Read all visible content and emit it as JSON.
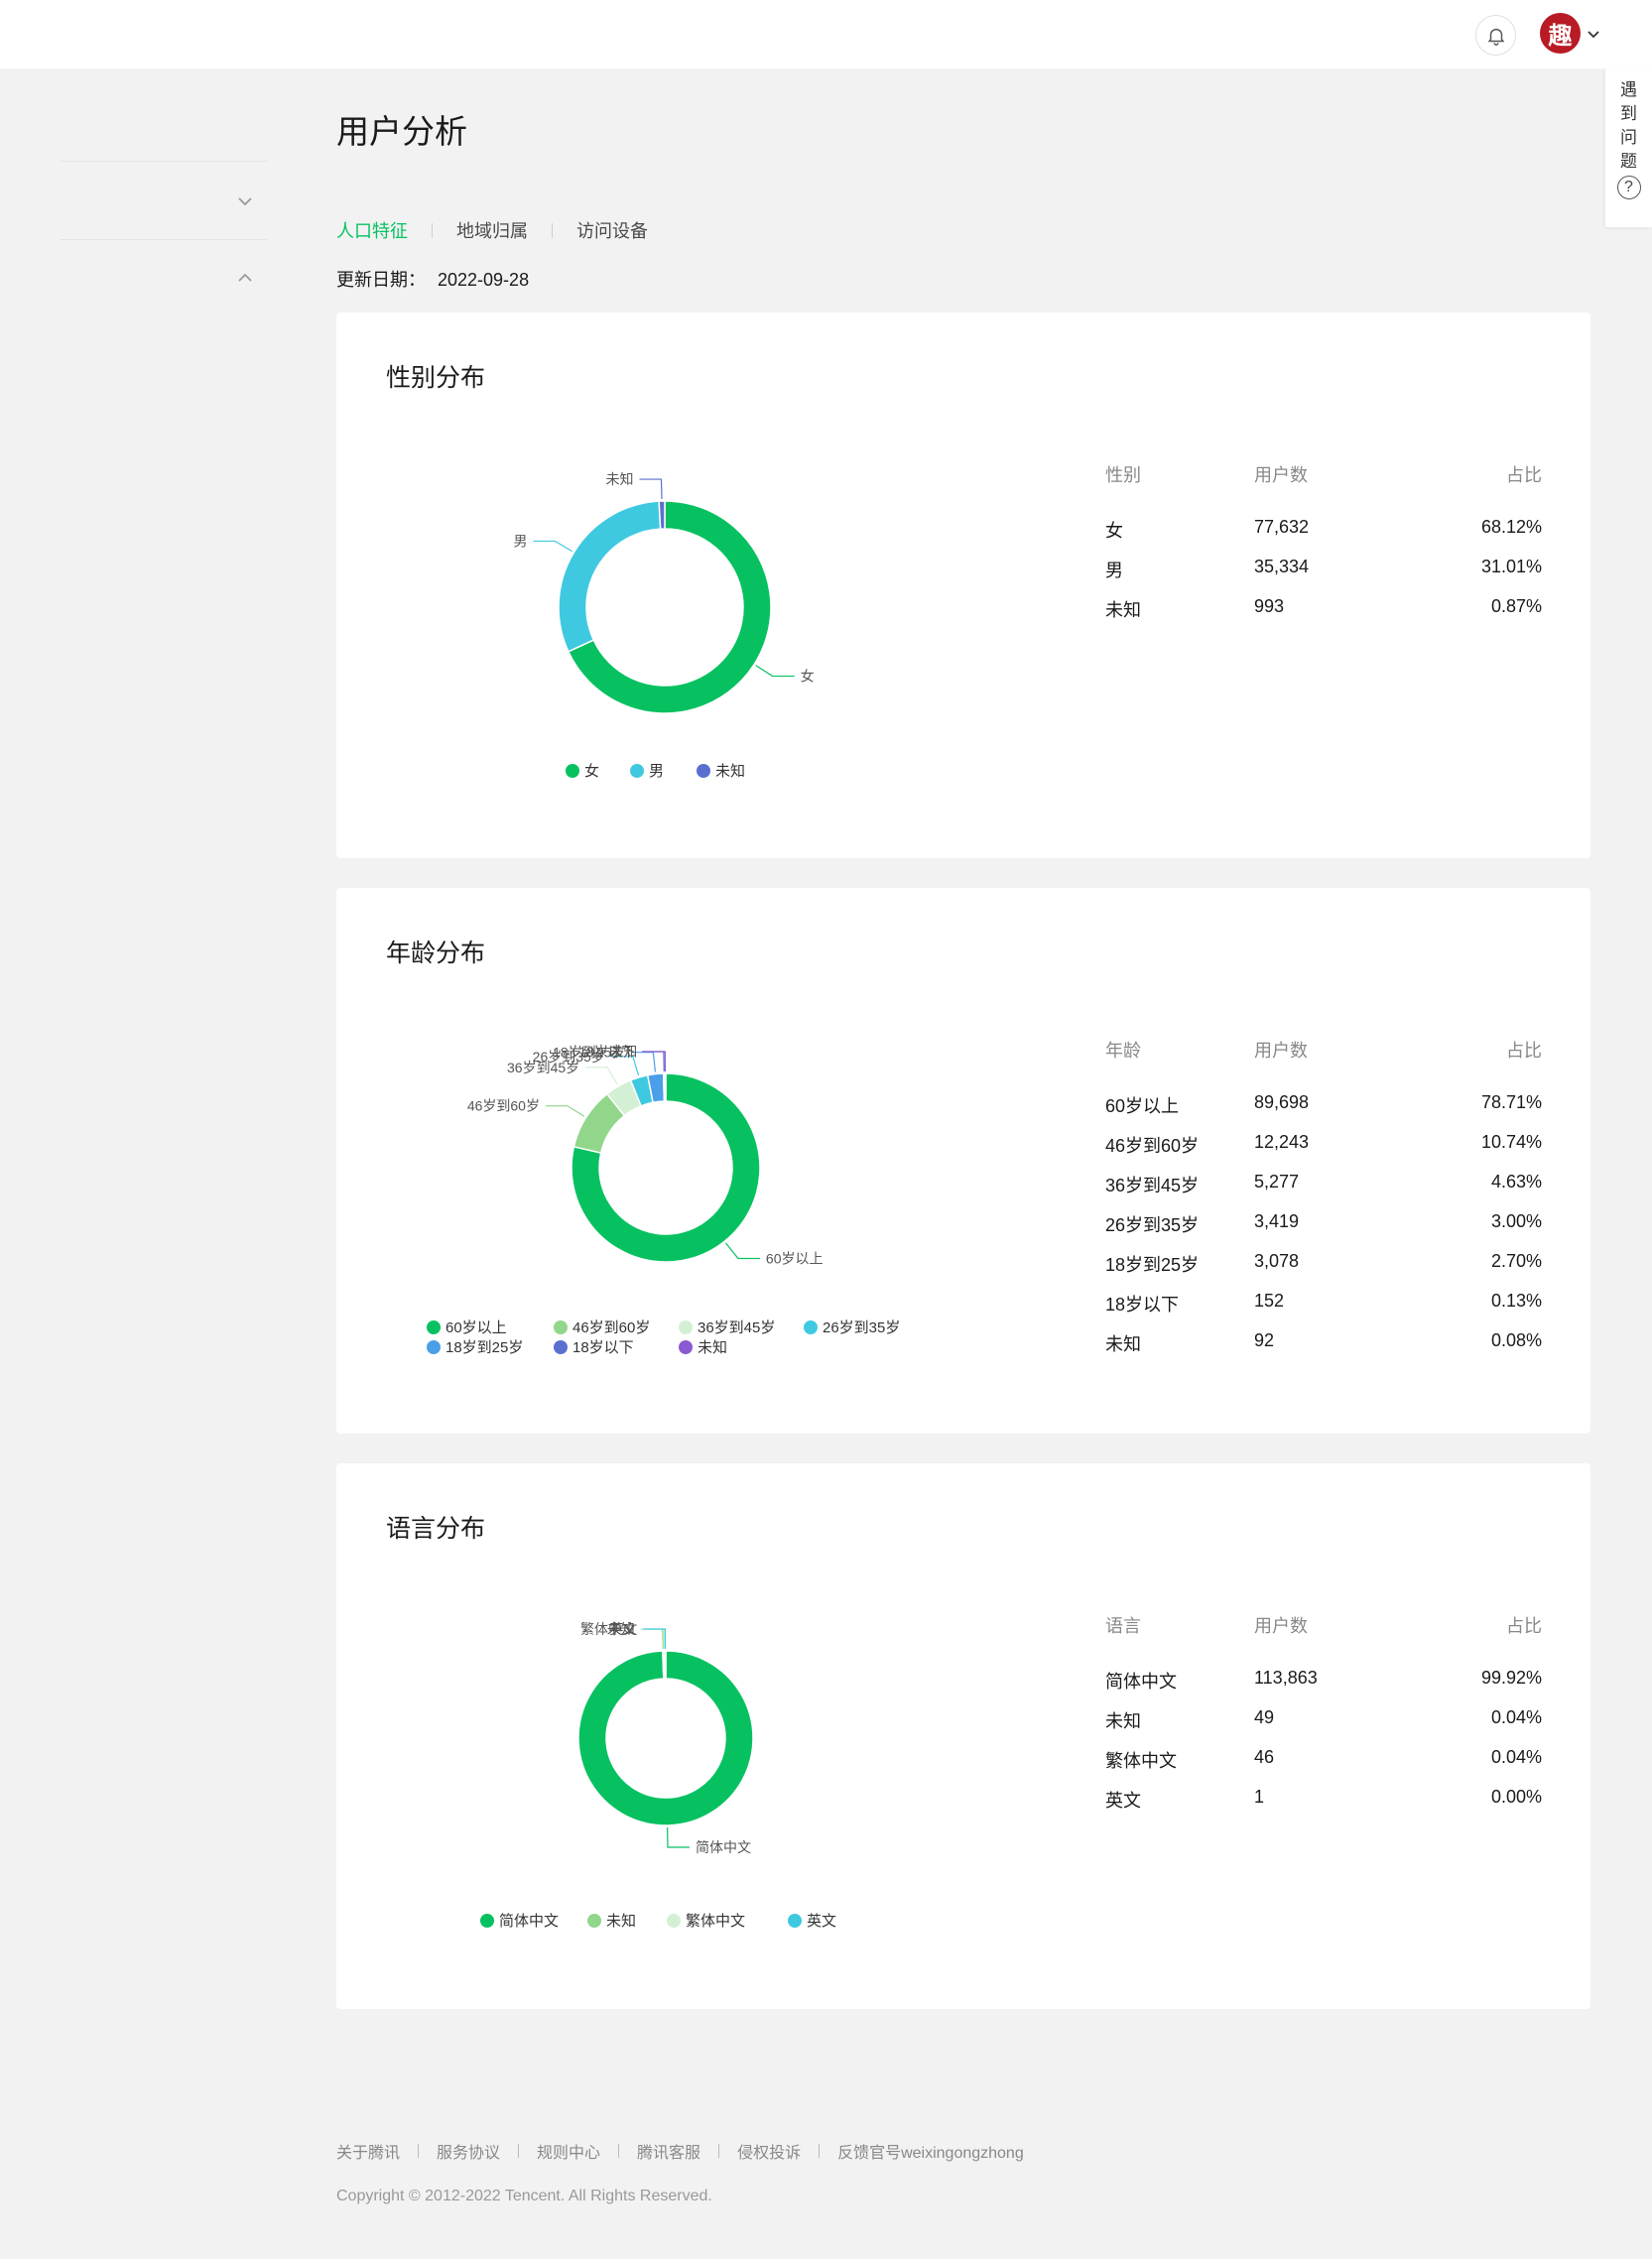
{
  "header": {
    "avatar_char": "趣",
    "help_label": [
      "遇",
      "到",
      "问",
      "题"
    ],
    "help_icon": "?"
  },
  "page": {
    "title": "用户分析",
    "tabs": [
      "人口特征",
      "地域归属",
      "访问设备"
    ],
    "active_tab": 0,
    "update_label": "更新日期：",
    "update_date": "2022-09-28"
  },
  "colors": {
    "accent": "#07c160",
    "palette": [
      "#07c160",
      "#91d68a",
      "#d4f0d4",
      "#3fc9e0",
      "#4b9ee8",
      "#5b6fd0",
      "#8a5bd0"
    ]
  },
  "cards": [
    {
      "title": "性别分布",
      "table_headers": [
        "性别",
        "用户数",
        "占比"
      ],
      "rows": [
        [
          "女",
          "77,632",
          "68.12%"
        ],
        [
          "男",
          "35,334",
          "31.01%"
        ],
        [
          "未知",
          "993",
          "0.87%"
        ]
      ]
    },
    {
      "title": "年龄分布",
      "table_headers": [
        "年龄",
        "用户数",
        "占比"
      ],
      "rows": [
        [
          "60岁以上",
          "89,698",
          "78.71%"
        ],
        [
          "46岁到60岁",
          "12,243",
          "10.74%"
        ],
        [
          "36岁到45岁",
          "5,277",
          "4.63%"
        ],
        [
          "26岁到35岁",
          "3,419",
          "3.00%"
        ],
        [
          "18岁到25岁",
          "3,078",
          "2.70%"
        ],
        [
          "18岁以下",
          "152",
          "0.13%"
        ],
        [
          "未知",
          "92",
          "0.08%"
        ]
      ]
    },
    {
      "title": "语言分布",
      "table_headers": [
        "语言",
        "用户数",
        "占比"
      ],
      "rows": [
        [
          "简体中文",
          "113,863",
          "99.92%"
        ],
        [
          "未知",
          "49",
          "0.04%"
        ],
        [
          "繁体中文",
          "46",
          "0.04%"
        ],
        [
          "英文",
          "1",
          "0.00%"
        ]
      ]
    }
  ],
  "chart_data": [
    {
      "type": "pie",
      "title": "性别分布",
      "categories": [
        "女",
        "男",
        "未知"
      ],
      "values": [
        77632,
        35334,
        993
      ],
      "colors": [
        "#07c160",
        "#3fc9e0",
        "#5b6fd0"
      ],
      "legend": [
        "女",
        "男",
        "未知"
      ],
      "legend_placement": "bottom"
    },
    {
      "type": "pie",
      "title": "年龄分布",
      "categories": [
        "60岁以上",
        "46岁到60岁",
        "36岁到45岁",
        "26岁到35岁",
        "18岁到25岁",
        "18岁以下",
        "未知"
      ],
      "values": [
        89698,
        12243,
        5277,
        3419,
        3078,
        152,
        92
      ],
      "colors": [
        "#07c160",
        "#91d68a",
        "#d4f0d4",
        "#3fc9e0",
        "#4b9ee8",
        "#5b6fd0",
        "#8a5bd0"
      ],
      "legend": [
        "60岁以上",
        "46岁到60岁",
        "36岁到45岁",
        "26岁到35岁",
        "18岁到25岁",
        "18岁以下",
        "未知"
      ],
      "legend_placement": "bottom"
    },
    {
      "type": "pie",
      "title": "语言分布",
      "categories": [
        "简体中文",
        "未知",
        "繁体中文",
        "英文"
      ],
      "values": [
        113863,
        49,
        46,
        1
      ],
      "colors": [
        "#07c160",
        "#91d68a",
        "#d4f0d4",
        "#3fc9e0"
      ],
      "legend": [
        "简体中文",
        "未知",
        "繁体中文",
        "英文"
      ],
      "legend_placement": "bottom"
    }
  ],
  "footer": {
    "links": [
      "关于腾讯",
      "服务协议",
      "规则中心",
      "腾讯客服",
      "侵权投诉",
      "反馈官号weixingongzhong"
    ],
    "copyright": "Copyright © 2012-2022 Tencent. All Rights Reserved."
  }
}
